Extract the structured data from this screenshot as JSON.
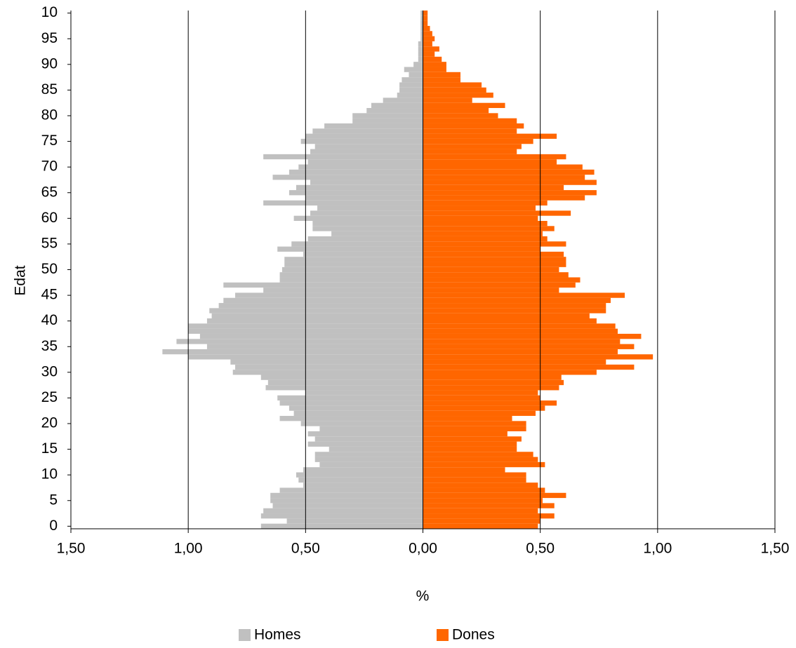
{
  "chart_data": {
    "type": "bar",
    "orientation": "horizontal",
    "y_label": "Edat",
    "x_label": "%",
    "categories": [
      "0",
      null,
      null,
      null,
      null,
      "5",
      null,
      null,
      null,
      null,
      "10",
      null,
      null,
      null,
      null,
      "15",
      null,
      null,
      null,
      null,
      "20",
      null,
      null,
      null,
      null,
      "25",
      null,
      null,
      null,
      null,
      "30",
      null,
      null,
      null,
      null,
      "35",
      null,
      null,
      null,
      null,
      "40",
      null,
      null,
      null,
      null,
      "45",
      null,
      null,
      null,
      null,
      "50",
      null,
      null,
      null,
      null,
      "55",
      null,
      null,
      null,
      null,
      "60",
      null,
      null,
      null,
      null,
      "65",
      null,
      null,
      null,
      null,
      "70",
      null,
      null,
      null,
      null,
      "75",
      null,
      null,
      null,
      null,
      "80",
      null,
      null,
      null,
      null,
      "85",
      null,
      null,
      null,
      null,
      "90",
      null,
      null,
      null,
      null,
      "95",
      null,
      null,
      null,
      null,
      "10"
    ],
    "series": [
      {
        "name": "Homes",
        "color": "#c0c0c0",
        "values": [
          -0.69,
          -0.58,
          -0.69,
          -0.68,
          -0.64,
          -0.65,
          -0.65,
          -0.61,
          -0.51,
          -0.53,
          -0.54,
          -0.51,
          -0.44,
          -0.46,
          -0.46,
          -0.4,
          -0.49,
          -0.46,
          -0.49,
          -0.44,
          -0.52,
          -0.61,
          -0.55,
          -0.57,
          -0.61,
          -0.62,
          -0.5,
          -0.67,
          -0.66,
          -0.69,
          -0.81,
          -0.8,
          -0.82,
          -1.0,
          -1.11,
          -0.92,
          -1.05,
          -0.95,
          -1.0,
          -1.0,
          -0.92,
          -0.9,
          -0.91,
          -0.87,
          -0.85,
          -0.8,
          -0.68,
          -0.85,
          -0.61,
          -0.61,
          -0.6,
          -0.59,
          -0.59,
          -0.51,
          -0.62,
          -0.56,
          -0.49,
          -0.39,
          -0.47,
          -0.47,
          -0.55,
          -0.48,
          -0.45,
          -0.68,
          -0.5,
          -0.57,
          -0.54,
          -0.48,
          -0.64,
          -0.57,
          -0.53,
          -0.49,
          -0.68,
          -0.48,
          -0.46,
          -0.52,
          -0.5,
          -0.47,
          -0.42,
          -0.3,
          -0.3,
          -0.24,
          -0.22,
          -0.17,
          -0.11,
          -0.1,
          -0.1,
          -0.09,
          -0.06,
          -0.08,
          -0.04,
          -0.02,
          -0.02,
          -0.02,
          -0.02,
          -0.01,
          -0.01,
          -0.01,
          -0.01,
          -0.01,
          -0.01
        ]
      },
      {
        "name": "Dones",
        "color": "#ff6600",
        "values": [
          0.49,
          0.5,
          0.56,
          0.49,
          0.56,
          0.51,
          0.61,
          0.52,
          0.49,
          0.44,
          0.44,
          0.35,
          0.52,
          0.49,
          0.47,
          0.4,
          0.4,
          0.42,
          0.36,
          0.44,
          0.44,
          0.38,
          0.48,
          0.52,
          0.57,
          0.5,
          0.49,
          0.58,
          0.6,
          0.59,
          0.74,
          0.9,
          0.78,
          0.98,
          0.83,
          0.9,
          0.84,
          0.93,
          0.83,
          0.82,
          0.74,
          0.71,
          0.78,
          0.78,
          0.8,
          0.86,
          0.58,
          0.65,
          0.67,
          0.62,
          0.58,
          0.61,
          0.61,
          0.6,
          0.5,
          0.61,
          0.53,
          0.51,
          0.56,
          0.53,
          0.49,
          0.63,
          0.48,
          0.53,
          0.69,
          0.74,
          0.6,
          0.74,
          0.69,
          0.73,
          0.68,
          0.57,
          0.61,
          0.4,
          0.42,
          0.47,
          0.57,
          0.4,
          0.43,
          0.4,
          0.32,
          0.28,
          0.35,
          0.21,
          0.3,
          0.27,
          0.25,
          0.16,
          0.16,
          0.1,
          0.1,
          0.08,
          0.05,
          0.07,
          0.04,
          0.05,
          0.04,
          0.03,
          0.02,
          0.02,
          0.02
        ]
      }
    ],
    "xlim": [
      -1.5,
      1.5
    ],
    "xticks": [
      {
        "value": -1.5,
        "label": "1,50"
      },
      {
        "value": -1,
        "label": "1,00"
      },
      {
        "value": -0.5,
        "label": "0,50"
      },
      {
        "value": 0,
        "label": "0,00"
      },
      {
        "value": 0.5,
        "label": "0,50"
      },
      {
        "value": 1,
        "label": "1,00"
      },
      {
        "value": 1.5,
        "label": "1,50"
      }
    ],
    "grid": true,
    "legend": "bottom"
  }
}
